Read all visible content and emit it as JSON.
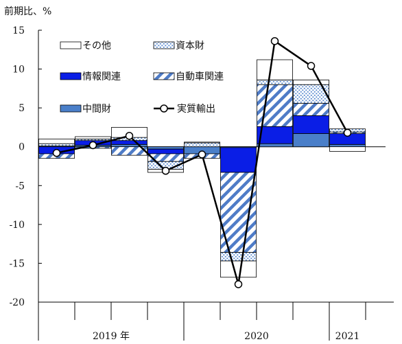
{
  "chart_data": {
    "type": "bar",
    "unit_label": "前期比、%",
    "ylim": [
      -20,
      15
    ],
    "yticks": [
      15,
      10,
      5,
      0,
      -5,
      -10,
      -15,
      -20
    ],
    "periods": [
      "2019Q1",
      "2019Q2",
      "2019Q3",
      "2019Q4",
      "2020Q1",
      "2020Q2",
      "2020Q3",
      "2020Q4",
      "2021Q1"
    ],
    "year_labels": [
      {
        "label": "2019 年",
        "quarters": [
          0,
          3
        ]
      },
      {
        "label": "2020",
        "quarters": [
          4,
          7
        ]
      },
      {
        "label": "2021",
        "quarters": [
          8,
          8
        ]
      }
    ],
    "series": [
      {
        "name": "中間財",
        "key": "intermediate",
        "values": [
          0.1,
          0.2,
          0.3,
          -0.3,
          -0.9,
          -0.1,
          0.4,
          1.7,
          0.3
        ]
      },
      {
        "name": "情報関連",
        "key": "it",
        "values": [
          -0.9,
          0.6,
          0.5,
          -0.6,
          0.0,
          -3.2,
          2.2,
          2.3,
          1.4
        ]
      },
      {
        "name": "自動車関連",
        "key": "auto",
        "values": [
          -0.6,
          -0.2,
          -1.1,
          -1.0,
          -0.6,
          -10.3,
          5.4,
          1.6,
          0.2
        ]
      },
      {
        "name": "資本財",
        "key": "capital",
        "values": [
          0.3,
          0.2,
          0.4,
          -1.0,
          0.5,
          -1.1,
          0.6,
          2.4,
          0.4
        ]
      },
      {
        "name": "その他",
        "key": "other",
        "values": [
          0.6,
          0.3,
          1.3,
          -0.4,
          0.1,
          -2.1,
          2.6,
          0.6,
          -0.6
        ]
      }
    ],
    "line": {
      "name": "実質輸出",
      "values": [
        -0.8,
        0.2,
        1.4,
        -3.1,
        -1.0,
        -17.7,
        13.6,
        10.4,
        1.8
      ]
    }
  },
  "colors": {
    "intermediate": "#4a7fc9",
    "it": "#0a1ee6",
    "auto": "#4f7cc7",
    "capital": "#5b8bd0",
    "other": "#ffffff",
    "line": "#000000"
  }
}
